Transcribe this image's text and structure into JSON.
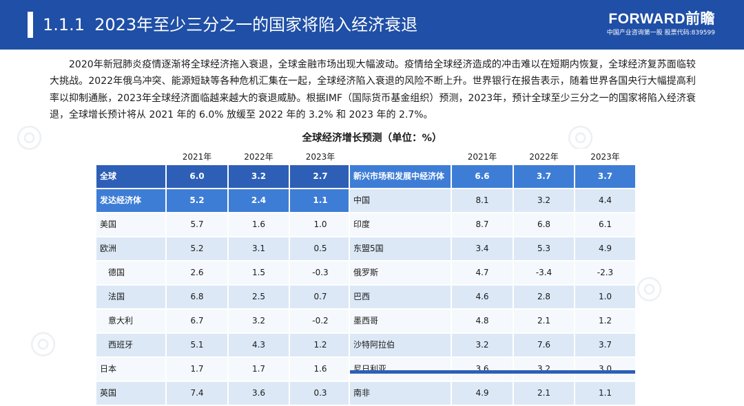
{
  "header": {
    "section_number": "1.1.1",
    "title": "2023年至少三分之一的国家将陷入经济衰退",
    "logo_text": "FORWARD前瞻",
    "logo_subtext": "中国产业咨询第一股 股票代码:839599",
    "accent_color": "#1f4fa6"
  },
  "paragraph": "2020年新冠肺炎疫情逐渐将全球经济拖入衰退，全球金融市场出现大幅波动。疫情给全球经济造成的冲击难以在短期内恢复，全球经济复苏面临较大挑战。2022年俄乌冲突、能源短缺等各种危机汇集在一起，全球经济陷入衰退的风险不断上升。世界银行在报告表示，随着世界各国央行大幅提高利率以抑制通胀，2023年全球经济面临越来越大的衰退威胁。根据IMF（国际货币基金组织）预测，2023年，预计全球至少三分之一的国家将陷入经济衰退，全球增长预计将从 2021 年的 6.0% 放缓至 2022 年的 3.2% 和 2023 年的 2.7%。",
  "table": {
    "title": "全球经济增长预测（单位：%）",
    "years": [
      "2021年",
      "2022年",
      "2023年"
    ],
    "left_rows": [
      {
        "name": "全球",
        "values": [
          "6.0",
          "3.2",
          "2.7"
        ],
        "style": "dark"
      },
      {
        "name": "发达经济体",
        "values": [
          "5.2",
          "2.4",
          "1.1"
        ],
        "style": "medium"
      },
      {
        "name": "美国",
        "values": [
          "5.7",
          "1.6",
          "1.0"
        ],
        "style": "white"
      },
      {
        "name": "欧洲",
        "values": [
          "5.2",
          "3.1",
          "0.5"
        ],
        "style": "light"
      },
      {
        "name": "德国",
        "values": [
          "2.6",
          "1.5",
          "-0.3"
        ],
        "style": "white",
        "indent": true
      },
      {
        "name": "法国",
        "values": [
          "6.8",
          "2.5",
          "0.7"
        ],
        "style": "light",
        "indent": true
      },
      {
        "name": "意大利",
        "values": [
          "6.7",
          "3.2",
          "-0.2"
        ],
        "style": "white",
        "indent": true
      },
      {
        "name": "西班牙",
        "values": [
          "5.1",
          "4.3",
          "1.2"
        ],
        "style": "light",
        "indent": true
      },
      {
        "name": "日本",
        "values": [
          "1.7",
          "1.7",
          "1.6"
        ],
        "style": "white"
      },
      {
        "name": "英国",
        "values": [
          "7.4",
          "3.6",
          "0.3"
        ],
        "style": "light"
      }
    ],
    "right_rows": [
      {
        "name": "新兴市场和发展中经济体",
        "values": [
          "6.6",
          "3.7",
          "3.7"
        ],
        "style": "medium"
      },
      {
        "name": "中国",
        "values": [
          "8.1",
          "3.2",
          "4.4"
        ],
        "style": "light"
      },
      {
        "name": "印度",
        "values": [
          "8.7",
          "6.8",
          "6.1"
        ],
        "style": "white"
      },
      {
        "name": "东盟5国",
        "values": [
          "3.4",
          "5.3",
          "4.9"
        ],
        "style": "light"
      },
      {
        "name": "俄罗斯",
        "values": [
          "4.7",
          "-3.4",
          "-2.3"
        ],
        "style": "white"
      },
      {
        "name": "巴西",
        "values": [
          "4.6",
          "2.8",
          "1.0"
        ],
        "style": "light"
      },
      {
        "name": "墨西哥",
        "values": [
          "4.8",
          "2.1",
          "1.2"
        ],
        "style": "white"
      },
      {
        "name": "沙特阿拉伯",
        "values": [
          "3.2",
          "7.6",
          "3.7"
        ],
        "style": "light"
      },
      {
        "name": "尼日利亚",
        "values": [
          "3.6",
          "3.2",
          "3.0"
        ],
        "style": "white"
      },
      {
        "name": "南非",
        "values": [
          "4.9",
          "2.1",
          "1.1"
        ],
        "style": "light"
      }
    ]
  },
  "colors": {
    "header_blue": "#1f4fa6",
    "row_dark": "#2e5fb6",
    "row_medium": "#3e7dd6",
    "row_light": "#dce8f6"
  }
}
